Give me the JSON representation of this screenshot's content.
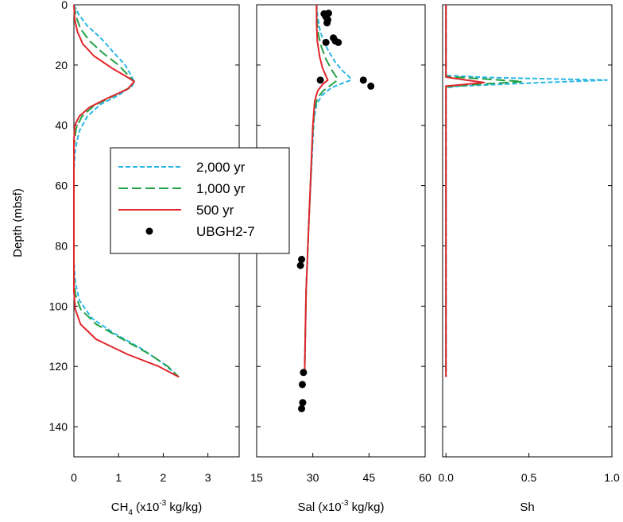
{
  "chart_data": [
    {
      "type": "line",
      "xlabel_main": "CH",
      "xlabel_sub": "4",
      "xlabel_mid": " (x10",
      "xlabel_sup": "-3",
      "xlabel_tail": " kg/kg)",
      "ylabel": "Depth (mbsf)",
      "xlim": [
        0,
        3.7
      ],
      "ylim": [
        150,
        0
      ],
      "xticks": [
        0,
        1,
        2,
        3
      ],
      "xticklabels": [
        "0",
        "1",
        "2",
        "3"
      ],
      "yticks": [
        0,
        20,
        40,
        60,
        80,
        100,
        120,
        140
      ],
      "yticklabels": [
        "0",
        "20",
        "40",
        "60",
        "80",
        "100",
        "120",
        "140"
      ],
      "series": [
        {
          "name": "2,000 yr",
          "color": "#29B6E6",
          "dash": "dashed",
          "points": [
            [
              0.0,
              0
            ],
            [
              0.1,
              3
            ],
            [
              0.3,
              7
            ],
            [
              0.6,
              11
            ],
            [
              0.9,
              16
            ],
            [
              1.15,
              20
            ],
            [
              1.3,
              24
            ],
            [
              1.35,
              25.5
            ],
            [
              1.3,
              27
            ],
            [
              1.0,
              30
            ],
            [
              0.6,
              33
            ],
            [
              0.3,
              37
            ],
            [
              0.12,
              42
            ],
            [
              0.03,
              48
            ],
            [
              0.0,
              55
            ],
            [
              0.0,
              85
            ],
            [
              0.03,
              92
            ],
            [
              0.12,
              98
            ],
            [
              0.4,
              104
            ],
            [
              0.9,
              109
            ],
            [
              1.5,
              114
            ],
            [
              2.0,
              119
            ],
            [
              2.35,
              123.5
            ]
          ]
        },
        {
          "name": "1,000 yr",
          "color": "#22A046",
          "dash": "longdash",
          "points": [
            [
              0.0,
              0
            ],
            [
              0.05,
              4
            ],
            [
              0.15,
              8
            ],
            [
              0.35,
              12
            ],
            [
              0.65,
              16
            ],
            [
              1.0,
              20
            ],
            [
              1.25,
              24
            ],
            [
              1.35,
              25.5
            ],
            [
              1.25,
              27.5
            ],
            [
              0.85,
              30.5
            ],
            [
              0.45,
              33.5
            ],
            [
              0.18,
              37
            ],
            [
              0.05,
              41
            ],
            [
              0.0,
              47
            ],
            [
              0.0,
              90
            ],
            [
              0.03,
              96
            ],
            [
              0.15,
              101
            ],
            [
              0.5,
              106
            ],
            [
              1.1,
              111
            ],
            [
              1.7,
              116
            ],
            [
              2.1,
              120
            ],
            [
              2.35,
              123.5
            ]
          ]
        },
        {
          "name": "500 yr",
          "color": "#E0262B",
          "dash": "solid",
          "points": [
            [
              0.0,
              0
            ],
            [
              0.02,
              5
            ],
            [
              0.08,
              9
            ],
            [
              0.2,
              13
            ],
            [
              0.45,
              17
            ],
            [
              0.85,
              21
            ],
            [
              1.25,
              24.5
            ],
            [
              1.35,
              25.5
            ],
            [
              1.2,
              28
            ],
            [
              0.75,
              31
            ],
            [
              0.35,
              34
            ],
            [
              0.12,
              37
            ],
            [
              0.02,
              40
            ],
            [
              0.0,
              45
            ],
            [
              0.0,
              95
            ],
            [
              0.03,
              101
            ],
            [
              0.15,
              106
            ],
            [
              0.5,
              111
            ],
            [
              1.2,
              116
            ],
            [
              1.9,
              120
            ],
            [
              2.35,
              123.5
            ]
          ]
        }
      ]
    },
    {
      "type": "line",
      "xlabel": "Sal (x10",
      "xlabel_sup": "-3",
      "xlabel_tail": " kg/kg)",
      "xlim": [
        15,
        60
      ],
      "ylim": [
        150,
        0
      ],
      "xticks": [
        15,
        30,
        45,
        60
      ],
      "xticklabels": [
        "15",
        "30",
        "45",
        "60"
      ],
      "yticks": [
        0,
        20,
        40,
        60,
        80,
        100,
        120,
        140
      ],
      "series": [
        {
          "name": "2,000 yr",
          "color": "#29B6E6",
          "dash": "dashed",
          "points": [
            [
              31.0,
              0
            ],
            [
              31.3,
              4
            ],
            [
              32.0,
              9
            ],
            [
              33.2,
              13
            ],
            [
              34.5,
              16
            ],
            [
              36.0,
              19
            ],
            [
              38.0,
              22
            ],
            [
              39.8,
              24
            ],
            [
              40.2,
              25
            ],
            [
              38.0,
              26
            ],
            [
              35.0,
              27.5
            ],
            [
              32.5,
              30
            ],
            [
              31.0,
              33
            ],
            [
              30.3,
              38
            ],
            [
              30.0,
              45
            ],
            [
              29.0,
              70
            ],
            [
              28.2,
              95
            ],
            [
              27.8,
              123
            ]
          ]
        },
        {
          "name": "1,000 yr",
          "color": "#22A046",
          "dash": "longdash",
          "points": [
            [
              31.0,
              0
            ],
            [
              31.1,
              5
            ],
            [
              31.5,
              10
            ],
            [
              32.3,
              14
            ],
            [
              33.5,
              18
            ],
            [
              35.0,
              21.5
            ],
            [
              36.3,
              24
            ],
            [
              36.6,
              25
            ],
            [
              35.0,
              26.5
            ],
            [
              32.8,
              28.5
            ],
            [
              31.2,
              31
            ],
            [
              30.4,
              35
            ],
            [
              30.0,
              42
            ],
            [
              29.0,
              70
            ],
            [
              28.2,
              95
            ],
            [
              27.8,
              123
            ]
          ]
        },
        {
          "name": "500 yr",
          "color": "#E0262B",
          "dash": "solid",
          "points": [
            [
              31.0,
              0
            ],
            [
              31.0,
              6
            ],
            [
              31.2,
              12
            ],
            [
              31.8,
              17
            ],
            [
              32.6,
              21
            ],
            [
              33.7,
              24.2
            ],
            [
              34.0,
              25
            ],
            [
              32.7,
              26.3
            ],
            [
              31.3,
              28.5
            ],
            [
              30.5,
              32
            ],
            [
              30.0,
              40
            ],
            [
              29.0,
              70
            ],
            [
              28.2,
              95
            ],
            [
              27.8,
              123
            ]
          ]
        }
      ],
      "scatter": {
        "name": "UBGH2-7",
        "color": "#000000",
        "points": [
          [
            33.0,
            3
          ],
          [
            34.2,
            2.8
          ],
          [
            33.5,
            4
          ],
          [
            34.0,
            5
          ],
          [
            33.8,
            6
          ],
          [
            35.5,
            11
          ],
          [
            36.0,
            12
          ],
          [
            36.8,
            12.5
          ],
          [
            33.5,
            12.5
          ],
          [
            32.0,
            25
          ],
          [
            43.5,
            25
          ],
          [
            45.5,
            27
          ],
          [
            27.0,
            84.5
          ],
          [
            26.7,
            86.5
          ],
          [
            27.5,
            122
          ],
          [
            27.2,
            126
          ],
          [
            27.3,
            132
          ],
          [
            27.0,
            134
          ]
        ]
      }
    },
    {
      "type": "line",
      "xlabel": "Sh",
      "xlim": [
        -0.02,
        1.0
      ],
      "ylim": [
        150,
        0
      ],
      "xticks": [
        0.0,
        0.5,
        1.0
      ],
      "xticklabels": [
        "0.0",
        "0.5",
        "1.0"
      ],
      "yticks": [
        0,
        20,
        40,
        60,
        80,
        100,
        120,
        140
      ],
      "series": [
        {
          "name": "2,000 yr",
          "color": "#29B6E6",
          "dash": "dashed",
          "points": [
            [
              0,
              0
            ],
            [
              0,
              23.5
            ],
            [
              0.3,
              24.2
            ],
            [
              0.97,
              25
            ],
            [
              0.5,
              26
            ],
            [
              0.08,
              27
            ],
            [
              0,
              27.5
            ],
            [
              0,
              123.5
            ]
          ]
        },
        {
          "name": "1,000 yr",
          "color": "#22A046",
          "dash": "longdash",
          "points": [
            [
              0,
              0
            ],
            [
              0,
              23.8
            ],
            [
              0.2,
              24.5
            ],
            [
              0.46,
              25.5
            ],
            [
              0.2,
              26.4
            ],
            [
              0,
              27.2
            ],
            [
              0,
              123.5
            ]
          ]
        },
        {
          "name": "500 yr",
          "color": "#E0262B",
          "dash": "solid",
          "points": [
            [
              0,
              0
            ],
            [
              0,
              24
            ],
            [
              0.1,
              24.8
            ],
            [
              0.23,
              25.8
            ],
            [
              0.08,
              26.6
            ],
            [
              0,
              27
            ],
            [
              0,
              123.5
            ]
          ]
        }
      ]
    }
  ],
  "legend": {
    "placement": "over-left-panel",
    "entries": [
      {
        "label": "2,000 yr",
        "color": "#29B6E6",
        "style": "dashed"
      },
      {
        "label": "1,000 yr",
        "color": "#22A046",
        "style": "longdash"
      },
      {
        "label": "500 yr",
        "color": "#E0262B",
        "style": "solid"
      },
      {
        "label": "UBGH2-7",
        "color": "#000000",
        "style": "dot"
      }
    ]
  }
}
